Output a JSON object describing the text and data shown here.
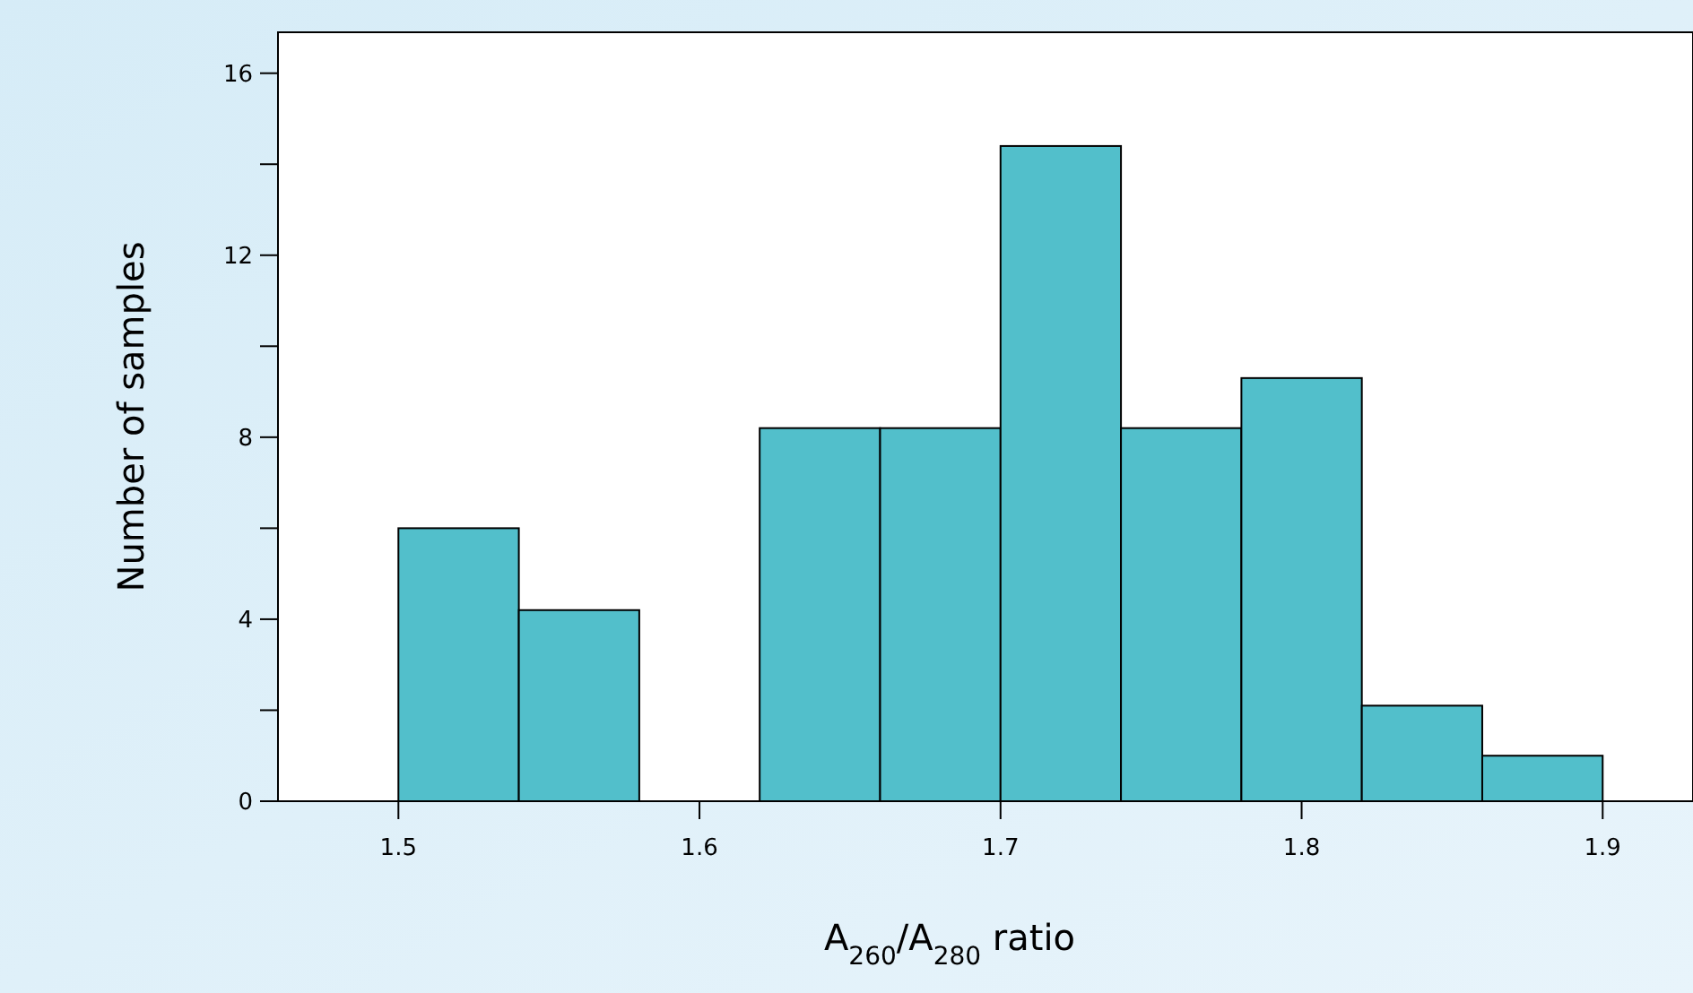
{
  "chart_data": {
    "type": "histogram",
    "xlabel": "A$_{260}$/A$_{280}$ ratio",
    "ylabel": "Number of samples",
    "bins": [
      1.5,
      1.54,
      1.58,
      1.62,
      1.66,
      1.7,
      1.74,
      1.78,
      1.82,
      1.86,
      1.9
    ],
    "values": [
      6,
      4.2,
      0,
      8.2,
      8.2,
      14.4,
      8.2,
      9.3,
      2.1,
      1.0
    ],
    "color": "#52bfcb",
    "xlim": [
      1.46,
      1.93
    ],
    "xticks": [
      1.5,
      1.6,
      1.7,
      1.8,
      1.9
    ],
    "ylim": [
      0,
      16.9
    ],
    "yticks": [
      0,
      {
        "value": 2,
        "label": null
      },
      4,
      {
        "value": 6,
        "label": null
      },
      8,
      {
        "value": 10,
        "label": null
      },
      12,
      {
        "value": 14,
        "label": null
      },
      16
    ],
    "grid": false
  }
}
